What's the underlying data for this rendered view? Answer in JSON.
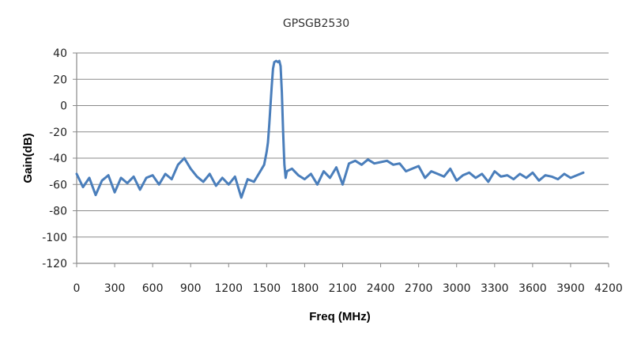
{
  "chart_data": {
    "type": "line",
    "title": "GPSGB2530",
    "xlabel": "Freq (MHz)",
    "ylabel": "Gain(dB)",
    "xlim": [
      0,
      4200
    ],
    "ylim": [
      -120,
      40
    ],
    "xticks": [
      0,
      300,
      600,
      900,
      1200,
      1500,
      1800,
      2100,
      2400,
      2700,
      3000,
      3300,
      3600,
      3900,
      4200
    ],
    "yticks": [
      40,
      20,
      0,
      -20,
      -40,
      -60,
      -80,
      -100,
      -120
    ],
    "grid": true,
    "legend": "none",
    "series": [
      {
        "color": "#4a7ebb",
        "x": [
          0,
          50,
          100,
          150,
          200,
          250,
          300,
          350,
          400,
          450,
          500,
          550,
          600,
          650,
          700,
          750,
          800,
          850,
          900,
          950,
          1000,
          1050,
          1100,
          1150,
          1200,
          1250,
          1300,
          1350,
          1400,
          1450,
          1480,
          1500,
          1510,
          1520,
          1530,
          1540,
          1550,
          1560,
          1575,
          1590,
          1600,
          1610,
          1620,
          1630,
          1640,
          1650,
          1660,
          1700,
          1750,
          1800,
          1850,
          1900,
          1950,
          2000,
          2050,
          2100,
          2150,
          2200,
          2250,
          2300,
          2350,
          2400,
          2450,
          2500,
          2550,
          2600,
          2650,
          2700,
          2750,
          2800,
          2850,
          2900,
          2950,
          3000,
          3050,
          3100,
          3150,
          3200,
          3250,
          3300,
          3350,
          3400,
          3450,
          3500,
          3550,
          3600,
          3650,
          3700,
          3750,
          3800,
          3850,
          3900,
          3950,
          4000
        ],
        "y": [
          -52,
          -62,
          -55,
          -68,
          -57,
          -53,
          -66,
          -55,
          -59,
          -54,
          -64,
          -55,
          -53,
          -60,
          -52,
          -56,
          -45,
          -40,
          -48,
          -54,
          -58,
          -52,
          -61,
          -55,
          -60,
          -54,
          -70,
          -56,
          -58,
          -50,
          -45,
          -35,
          -28,
          -15,
          0,
          15,
          28,
          33,
          34,
          33,
          34,
          30,
          10,
          -20,
          -45,
          -55,
          -50,
          -48,
          -53,
          -56,
          -52,
          -60,
          -50,
          -55,
          -47,
          -60,
          -44,
          -42,
          -45,
          -41,
          -44,
          -43,
          -42,
          -45,
          -44,
          -50,
          -48,
          -46,
          -55,
          -50,
          -52,
          -54,
          -48,
          -57,
          -53,
          -51,
          -55,
          -52,
          -58,
          -50,
          -54,
          -53,
          -56,
          -52,
          -55,
          -51,
          -57,
          -53,
          -54,
          -56,
          -52,
          -55,
          -53,
          -51
        ]
      }
    ]
  }
}
